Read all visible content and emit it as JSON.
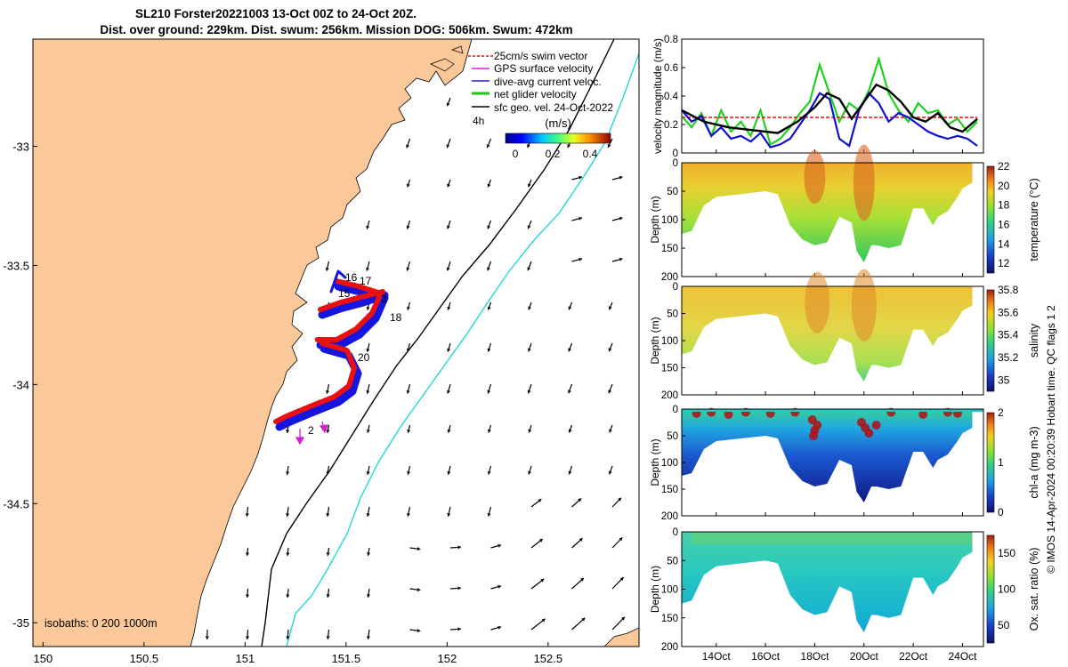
{
  "title": {
    "line1": "SL210 Forster20221003 13-Oct 00Z to 24-Oct 20Z.",
    "line2": "Dist. over ground: 229km. Dist. swum: 256km. Mission DOG: 506km. Swum: 472km"
  },
  "credit": "© IMOS 14-Apr-2024 00:20:39 Hobart time. QC flags 1  2",
  "map": {
    "x_ticks": [
      "150",
      "150.5",
      "151",
      "151.5",
      "152",
      "152.5"
    ],
    "y_ticks": [
      "-33",
      "-33.5",
      "-34",
      "-34.5",
      "-35"
    ],
    "xlim": [
      149.95,
      152.95
    ],
    "ylim": [
      -35.1,
      -32.55
    ],
    "isobaths_label": "isobaths: 0   200  1000m",
    "legend": [
      {
        "label": "25cm/s swim vector",
        "color": "#e01010",
        "symbol": "arrow"
      },
      {
        "label": "GPS surface velocity",
        "color": "#d020d0",
        "symbol": "arrow"
      },
      {
        "label": "dive-avg current veloc.",
        "color": "#2020d0",
        "symbol": "arrow"
      },
      {
        "label": "net glider velocity",
        "color": "#20c020",
        "symbol": "line"
      },
      {
        "label": "sfc geo. vel. 24-Oct-2022",
        "color": "#000000",
        "symbol": "arrow"
      }
    ],
    "time_label": "4h",
    "colorbar": {
      "unit": "(m/s)",
      "ticks": [
        "0",
        "0.2",
        "0.4"
      ],
      "range": [
        0,
        0.5
      ]
    },
    "track_labels": [
      "16",
      "17",
      "15",
      "3",
      "18",
      "20",
      "2"
    ],
    "colors": {
      "land": "#fbc999",
      "shelf_isobath": "#000000",
      "deep_isobath": "#20d8d8",
      "track_red": "#e81010",
      "track_blue": "#1515e0"
    }
  },
  "chart_data": [
    {
      "type": "line",
      "ylabel": "velocity magnitude (m/s)",
      "xlim": [
        "12-Oct-2022 12:00",
        "24-Oct-2022 20:00"
      ],
      "ylim": [
        0,
        0.8
      ],
      "y_ticks": [
        "0",
        "0.2",
        "0.4",
        "0.6",
        "0.8"
      ],
      "series": [
        {
          "color": "#20d020",
          "x": [
            "12.6",
            "13.0",
            "13.4",
            "13.8",
            "14.2",
            "14.6",
            "15.0",
            "15.4",
            "15.8",
            "16.2",
            "16.6",
            "17.0",
            "17.4",
            "17.8",
            "18.2",
            "18.6",
            "19.0",
            "19.4",
            "19.8",
            "20.2",
            "20.6",
            "21.0",
            "21.4",
            "21.8",
            "22.2",
            "22.6",
            "23.0",
            "23.4",
            "23.8",
            "24.2",
            "24.6"
          ],
          "values": [
            0.26,
            0.18,
            0.28,
            0.12,
            0.3,
            0.15,
            0.22,
            0.12,
            0.3,
            0.06,
            0.1,
            0.18,
            0.28,
            0.36,
            0.62,
            0.42,
            0.22,
            0.35,
            0.3,
            0.44,
            0.66,
            0.42,
            0.3,
            0.22,
            0.35,
            0.28,
            0.3,
            0.2,
            0.24,
            0.15,
            0.22
          ]
        },
        {
          "color": "#e01010",
          "x": [
            "12.6",
            "24.6"
          ],
          "values": [
            0.25,
            0.25
          ]
        },
        {
          "color": "#1010d0",
          "x": [
            "12.6",
            "13.0",
            "13.4",
            "13.8",
            "14.2",
            "14.6",
            "15.0",
            "15.4",
            "15.8",
            "16.2",
            "16.6",
            "17.0",
            "17.4",
            "17.8",
            "18.2",
            "18.6",
            "19.0",
            "19.4",
            "19.8",
            "20.2",
            "20.6",
            "21.0",
            "21.4",
            "21.8",
            "22.2",
            "22.6",
            "23.0",
            "23.4",
            "23.8",
            "24.2",
            "24.6"
          ],
          "values": [
            0.3,
            0.22,
            0.26,
            0.12,
            0.18,
            0.1,
            0.12,
            0.08,
            0.14,
            0.04,
            0.06,
            0.1,
            0.2,
            0.3,
            0.42,
            0.38,
            0.1,
            0.05,
            0.3,
            0.42,
            0.35,
            0.22,
            0.28,
            0.25,
            0.2,
            0.15,
            0.12,
            0.1,
            0.12,
            0.1,
            0.05
          ]
        },
        {
          "color": "#000000",
          "x": [
            "12.6",
            "13.5",
            "14.5",
            "15.5",
            "16.5",
            "17.3",
            "18.0",
            "18.5",
            "19.0",
            "19.5",
            "20.0",
            "20.5",
            "21.0",
            "21.5",
            "22.0",
            "22.5",
            "23.0",
            "23.5",
            "24.0",
            "24.6"
          ],
          "values": [
            0.3,
            0.22,
            0.18,
            0.16,
            0.14,
            0.22,
            0.32,
            0.42,
            0.38,
            0.24,
            0.36,
            0.48,
            0.44,
            0.36,
            0.25,
            0.22,
            0.28,
            0.18,
            0.15,
            0.24
          ]
        }
      ]
    },
    {
      "type": "heatmap",
      "ylabel": "Depth (m)",
      "colorbar_label": "temperature (°C)",
      "ylim": [
        200,
        0
      ],
      "y_ticks": [
        "0",
        "50",
        "100",
        "150",
        "200"
      ],
      "clim": [
        11,
        22
      ],
      "cbar_ticks": [
        "12",
        "14",
        "16",
        "18",
        "20",
        "22"
      ],
      "max_depth": {
        "x": [
          "12.6",
          "13.0",
          "13.5",
          "14.0",
          "15.0",
          "16.0",
          "16.5",
          "17.0",
          "17.5",
          "18.0",
          "18.5",
          "19.0",
          "19.5",
          "19.7",
          "20.0",
          "20.3",
          "20.5",
          "21.0",
          "21.5",
          "22.0",
          "22.4",
          "22.8",
          "23.0",
          "23.4",
          "23.8",
          "24.0",
          "24.4"
        ],
        "values": [
          125,
          120,
          75,
          60,
          55,
          50,
          55,
          110,
          135,
          145,
          140,
          95,
          105,
          155,
          175,
          145,
          145,
          150,
          145,
          80,
          80,
          110,
          95,
          85,
          60,
          45,
          35
        ]
      }
    },
    {
      "type": "heatmap",
      "ylabel": "Depth (m)",
      "colorbar_label": "salinity",
      "ylim": [
        200,
        0
      ],
      "y_ticks": [
        "0",
        "50",
        "100",
        "150",
        "200"
      ],
      "clim": [
        34.9,
        35.8
      ],
      "cbar_ticks": [
        "35",
        "35.2",
        "35.4",
        "35.6",
        "35.8"
      ]
    },
    {
      "type": "heatmap",
      "ylabel": "Depth (m)",
      "colorbar_label": "chl-a (mg m-3)",
      "ylim": [
        200,
        0
      ],
      "y_ticks": [
        "0",
        "50",
        "100",
        "150",
        "200"
      ],
      "clim": [
        0,
        2
      ],
      "cbar_ticks": [
        "0",
        "1",
        "2"
      ]
    },
    {
      "type": "heatmap",
      "ylabel": "Depth (m)",
      "colorbar_label": "Ox. sat. ratio (%)",
      "ylim": [
        200,
        0
      ],
      "y_ticks": [
        "0",
        "50",
        "100",
        "150",
        "200"
      ],
      "clim": [
        25,
        175
      ],
      "cbar_ticks": [
        "50",
        "100",
        "150"
      ],
      "x_ticks": [
        "14Oct",
        "16Oct",
        "18Oct",
        "20Oct",
        "22Oct",
        "24Oct"
      ],
      "x_tick_days": [
        14,
        16,
        18,
        20,
        22,
        24
      ],
      "xlim_days": [
        12.6,
        24.85
      ]
    }
  ]
}
